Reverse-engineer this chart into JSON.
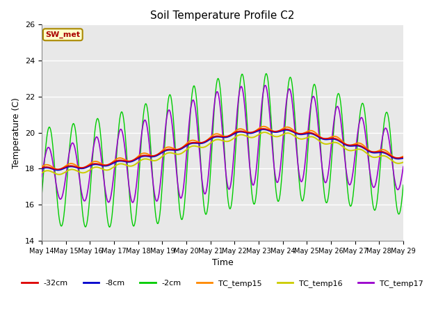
{
  "title": "Soil Temperature Profile C2",
  "xlabel": "Time",
  "ylabel": "Temperature (C)",
  "ylim": [
    14,
    26
  ],
  "bg_color": "#e8e8e8",
  "annotation_text": "SW_met",
  "annotation_bg": "#ffffcc",
  "annotation_border": "#aa8800",
  "annotation_fg": "#aa0000",
  "legend_labels": [
    "-32cm",
    "-8cm",
    "-2cm",
    "TC_temp15",
    "TC_temp16",
    "TC_temp17"
  ],
  "legend_colors": [
    "#dd0000",
    "#0000cc",
    "#00cc00",
    "#ff8800",
    "#cccc00",
    "#9900cc"
  ],
  "line_colors": {
    "d32cm": "#dd0000",
    "d8cm": "#0000cc",
    "d2cm": "#00cc00",
    "tc15": "#ff8800",
    "tc16": "#cccc00",
    "tc17": "#9900cc"
  },
  "tick_dates": [
    "May 14",
    "May 15",
    "May 16",
    "May 17",
    "May 18",
    "May 19",
    "May 20",
    "May 21",
    "May 22",
    "May 23",
    "May 24",
    "May 25",
    "May 26",
    "May 27",
    "May 28",
    "May 29"
  ],
  "yticks": [
    14,
    16,
    18,
    20,
    22,
    24,
    26
  ]
}
